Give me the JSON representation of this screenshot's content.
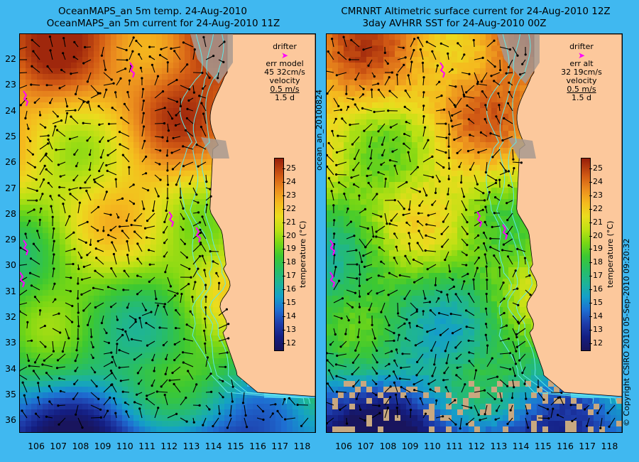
{
  "left_panel": {
    "title_line1": "OceanMAPS_an 5m temp. 24-Aug-2010",
    "title_line2": "OceanMAPS_an 5m current for 24-Aug-2010 11Z",
    "legend": {
      "drifter": "drifter",
      "err_label": "err model",
      "err_values": "45 32cm/s",
      "velocity": "velocity",
      "speed": "0.5 m/s",
      "duration": "1.5 d"
    }
  },
  "right_panel": {
    "title_line1": "CMRNRT Altimetric surface current for 24-Aug-2010 12Z",
    "title_line2": "3day AVHRR SST for 24-Aug-2010 00Z",
    "legend": {
      "drifter": "drifter",
      "err_label": "err alt",
      "err_values": "32 19cm/s",
      "velocity": "velocity",
      "speed": "0.5 m/s",
      "duration": "1.5 d"
    }
  },
  "colorbar": {
    "label": "temperature (°C)",
    "ticks": [
      "25",
      "24",
      "23",
      "22",
      "21",
      "20",
      "19",
      "18",
      "17",
      "16",
      "15",
      "14",
      "13",
      "12"
    ],
    "min": 11.5,
    "max": 25.8
  },
  "y_axis_ticks": [
    "22",
    "23",
    "24",
    "25",
    "26",
    "27",
    "28",
    "29",
    "30",
    "31",
    "32",
    "33",
    "34",
    "35",
    "36"
  ],
  "x_axis_ticks": [
    "106",
    "107",
    "108",
    "109",
    "110",
    "111",
    "112",
    "113",
    "114",
    "115",
    "116",
    "117",
    "118"
  ],
  "side_text_left": "ocean_an_20100824",
  "side_text_right": "© Copyright CSIRO 2010   05-Sep-2010 09:20:32",
  "colors": {
    "background": "#40b8f0",
    "land": "#fcc89c",
    "drifter": "#ff00ff",
    "contour": "#60e8e8"
  }
}
